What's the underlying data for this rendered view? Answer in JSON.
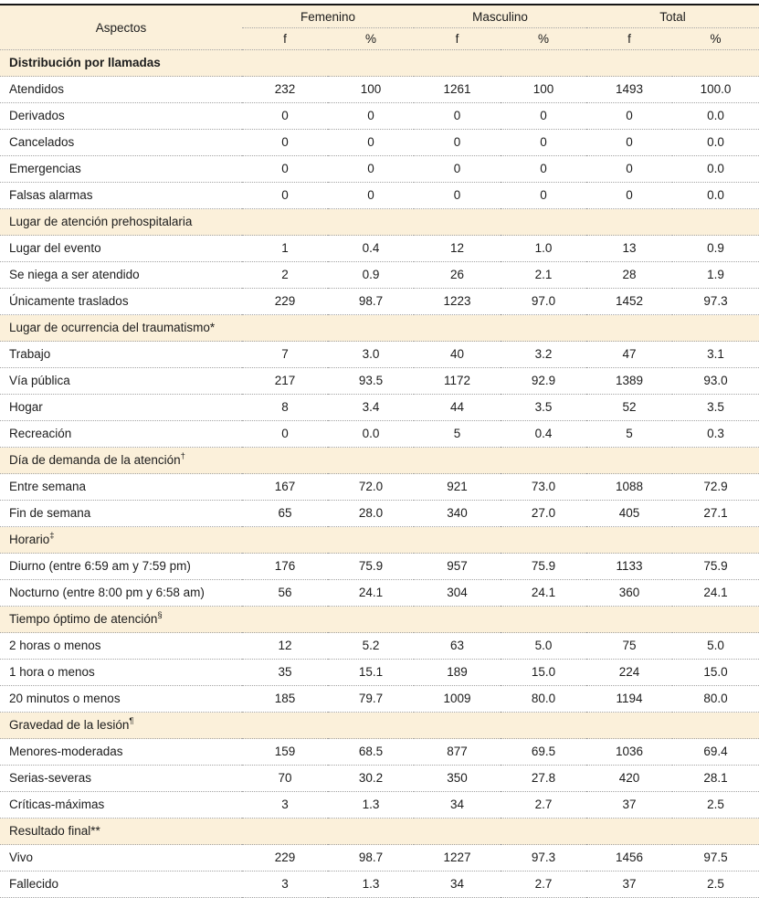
{
  "table": {
    "colors": {
      "section_bg": "#FBF0DA",
      "rule": "#a3a3a3",
      "top_border": "#161616",
      "text": "#1c1c1c"
    },
    "header": {
      "aspectos": "Aspectos",
      "groups": [
        "Femenino",
        "Masculino",
        "Total"
      ],
      "sub": [
        "f",
        "%",
        "f",
        "%",
        "f",
        "%"
      ]
    },
    "sections": [
      {
        "title": "Distribución por llamadas",
        "sup": "",
        "bold": true,
        "rows": [
          {
            "label": "Atendidos",
            "values": [
              "232",
              "100",
              "1261",
              "100",
              "1493",
              "100.0"
            ]
          },
          {
            "label": "Derivados",
            "values": [
              "0",
              "0",
              "0",
              "0",
              "0",
              "0.0"
            ]
          },
          {
            "label": "Cancelados",
            "values": [
              "0",
              "0",
              "0",
              "0",
              "0",
              "0.0"
            ]
          },
          {
            "label": "Emergencias",
            "values": [
              "0",
              "0",
              "0",
              "0",
              "0",
              "0.0"
            ]
          },
          {
            "label": "Falsas alarmas",
            "values": [
              "0",
              "0",
              "0",
              "0",
              "0",
              "0.0"
            ]
          }
        ]
      },
      {
        "title": "Lugar de atención prehospitalaria",
        "sup": "",
        "bold": false,
        "rows": [
          {
            "label": "Lugar del evento",
            "values": [
              "1",
              "0.4",
              "12",
              "1.0",
              "13",
              "0.9"
            ]
          },
          {
            "label": "Se niega a ser atendido",
            "values": [
              "2",
              "0.9",
              "26",
              "2.1",
              "28",
              "1.9"
            ]
          },
          {
            "label": "Únicamente traslados",
            "values": [
              "229",
              "98.7",
              "1223",
              "97.0",
              "1452",
              "97.3"
            ]
          }
        ]
      },
      {
        "title": "Lugar de ocurrencia del traumatismo*",
        "sup": "",
        "bold": false,
        "rows": [
          {
            "label": "Trabajo",
            "values": [
              "7",
              "3.0",
              "40",
              "3.2",
              "47",
              "3.1"
            ]
          },
          {
            "label": "Vía pública",
            "values": [
              "217",
              "93.5",
              "1172",
              "92.9",
              "1389",
              "93.0"
            ]
          },
          {
            "label": "Hogar",
            "values": [
              "8",
              "3.4",
              "44",
              "3.5",
              "52",
              "3.5"
            ]
          },
          {
            "label": "Recreación",
            "values": [
              "0",
              "0.0",
              "5",
              "0.4",
              "5",
              "0.3"
            ]
          }
        ]
      },
      {
        "title": "Día de demanda de la atención",
        "sup": "†",
        "bold": false,
        "rows": [
          {
            "label": "Entre semana",
            "values": [
              "167",
              "72.0",
              "921",
              "73.0",
              "1088",
              "72.9"
            ]
          },
          {
            "label": "Fin de semana",
            "values": [
              "65",
              "28.0",
              "340",
              "27.0",
              "405",
              "27.1"
            ]
          }
        ]
      },
      {
        "title": "Horario",
        "sup": "‡",
        "bold": false,
        "rows": [
          {
            "label": "Diurno (entre 6:59 am y 7:59 pm)",
            "values": [
              "176",
              "75.9",
              "957",
              "75.9",
              "1133",
              "75.9"
            ]
          },
          {
            "label": "Nocturno (entre 8:00 pm y 6:58 am)",
            "values": [
              "56",
              "24.1",
              "304",
              "24.1",
              "360",
              "24.1"
            ]
          }
        ]
      },
      {
        "title": "Tiempo óptimo de atención",
        "sup": "§",
        "bold": false,
        "rows": [
          {
            "label": "2 horas o menos",
            "values": [
              "12",
              "5.2",
              "63",
              "5.0",
              "75",
              "5.0"
            ]
          },
          {
            "label": "1 hora o menos",
            "values": [
              "35",
              "15.1",
              "189",
              "15.0",
              "224",
              "15.0"
            ]
          },
          {
            "label": "20 minutos o menos",
            "values": [
              "185",
              "79.7",
              "1009",
              "80.0",
              "1194",
              "80.0"
            ]
          }
        ]
      },
      {
        "title": "Gravedad de la lesión",
        "sup": "¶",
        "bold": false,
        "rows": [
          {
            "label": "Menores-moderadas",
            "values": [
              "159",
              "68.5",
              "877",
              "69.5",
              "1036",
              "69.4"
            ]
          },
          {
            "label": "Serias-severas",
            "values": [
              "70",
              "30.2",
              "350",
              "27.8",
              "420",
              "28.1"
            ]
          },
          {
            "label": "Críticas-máximas",
            "values": [
              "3",
              "1.3",
              "34",
              "2.7",
              "37",
              "2.5"
            ]
          }
        ]
      },
      {
        "title": "Resultado final**",
        "sup": "",
        "bold": false,
        "rows": [
          {
            "label": "Vivo",
            "values": [
              "229",
              "98.7",
              "1227",
              "97.3",
              "1456",
              "97.5"
            ]
          },
          {
            "label": "Fallecido",
            "values": [
              "3",
              "1.3",
              "34",
              "2.7",
              "37",
              "2.5"
            ]
          }
        ]
      }
    ]
  }
}
